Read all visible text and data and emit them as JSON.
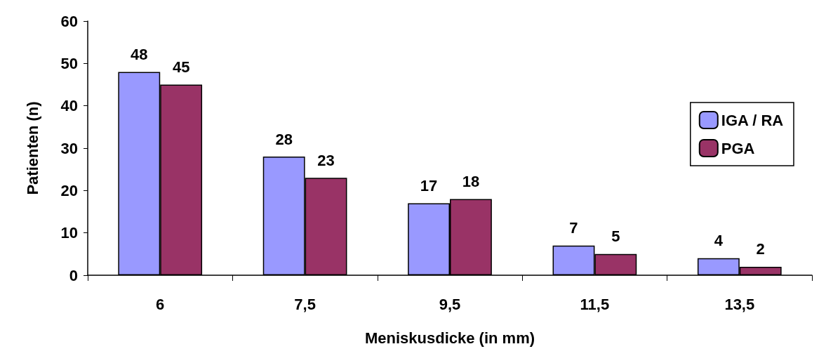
{
  "chart_data": {
    "type": "bar",
    "xlabel": "Meniskusdicke (in mm)",
    "ylabel": "Patienten (n)",
    "categories": [
      "6",
      "7,5",
      "9,5",
      "11,5",
      "13,5"
    ],
    "series": [
      {
        "name": "IGA / RA",
        "color": "#9999ff",
        "values": [
          48,
          28,
          17,
          7,
          4
        ]
      },
      {
        "name": "PGA",
        "color": "#993366",
        "values": [
          45,
          23,
          18,
          5,
          2
        ]
      }
    ],
    "ylim": [
      0,
      60
    ],
    "yticks": [
      0,
      10,
      20,
      30,
      40,
      50,
      60
    ],
    "grid": false,
    "legend": "right",
    "data_labels": true
  }
}
